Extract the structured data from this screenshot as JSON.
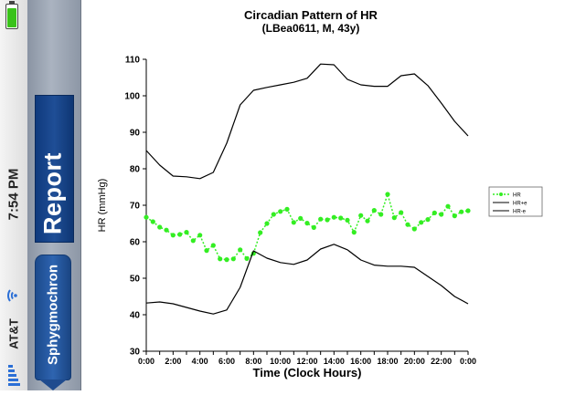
{
  "status_bar": {
    "carrier": "AT&T",
    "time": "7:54 PM",
    "battery_level": 0.9,
    "signal_bars": 5,
    "icons": [
      "battery-icon",
      "wifi-icon",
      "signal-icon"
    ]
  },
  "nav": {
    "title": "Report",
    "back_label": "Sphygmochron"
  },
  "colors": {
    "hr_series": "#33ee22",
    "bands": "#000000",
    "nav_title_bg": "#1f4e96"
  },
  "chart_data": {
    "type": "line",
    "title": "Circadian Pattern of HR",
    "subtitle": "(LBea0611, M, 43y)",
    "xlabel": "Time (Clock Hours)",
    "ylabel": "HR (mmHg)",
    "ylim": [
      30,
      110
    ],
    "xlim": [
      0,
      24
    ],
    "yticks": [
      30,
      40,
      50,
      60,
      70,
      80,
      90,
      100,
      110
    ],
    "xtick_labels": [
      "0:00",
      "2:00",
      "4:00",
      "6:00",
      "8:00",
      "10:00",
      "12:00",
      "14:00",
      "16:00",
      "18:00",
      "20:00",
      "22:00",
      "0:00"
    ],
    "legend_placement": "right",
    "series": [
      {
        "name": "HR",
        "style": "dotted-markers",
        "x": [
          0,
          0.5,
          1,
          1.5,
          2,
          2.5,
          3,
          3.5,
          4,
          4.5,
          5,
          5.5,
          6,
          6.5,
          7,
          7.5,
          8,
          8.5,
          9,
          9.5,
          10,
          10.5,
          11,
          11.5,
          12,
          12.5,
          13,
          13.5,
          14,
          14.5,
          15,
          15.5,
          16,
          16.5,
          17,
          17.5,
          18,
          18.5,
          19,
          19.5,
          20,
          20.5,
          21,
          21.5,
          22,
          22.5,
          23,
          23.5,
          24
        ],
        "values": [
          66.7,
          65.5,
          64.0,
          63.2,
          61.8,
          62.0,
          62.6,
          60.3,
          61.8,
          57.6,
          59.0,
          55.3,
          55.1,
          55.3,
          57.8,
          55.4,
          56.8,
          62.5,
          65.0,
          67.5,
          68.3,
          68.9,
          65.3,
          66.4,
          65.1,
          63.9,
          66.2,
          66.0,
          66.7,
          66.5,
          65.9,
          62.6,
          67.2,
          65.7,
          68.6,
          67.5,
          73.0,
          66.6,
          68.0,
          64.7,
          63.5,
          65.3,
          66.1,
          67.9,
          67.5,
          69.7,
          67.1,
          68.2,
          68.5
        ]
      },
      {
        "name": "HR+e",
        "style": "solid",
        "x": [
          0,
          1,
          2,
          3,
          4,
          5,
          6,
          7,
          8,
          9,
          10,
          11,
          12,
          13,
          14,
          15,
          16,
          17,
          18,
          19,
          20,
          21,
          22,
          23,
          24
        ],
        "values": [
          85.0,
          81.0,
          78.0,
          77.8,
          77.3,
          79.0,
          87.0,
          97.5,
          101.5,
          102.3,
          103.0,
          103.7,
          104.8,
          108.7,
          108.5,
          104.5,
          103.0,
          102.6,
          102.6,
          105.5,
          106.0,
          102.8,
          98.0,
          93.0,
          89.0
        ]
      },
      {
        "name": "HR-e",
        "style": "solid",
        "x": [
          0,
          1,
          2,
          3,
          4,
          5,
          6,
          7,
          8,
          9,
          10,
          11,
          12,
          13,
          14,
          15,
          16,
          17,
          18,
          19,
          20,
          21,
          22,
          23,
          24
        ],
        "values": [
          43.2,
          43.5,
          43.0,
          42.0,
          41.0,
          40.2,
          41.3,
          47.5,
          57.5,
          55.5,
          54.3,
          53.8,
          55.0,
          58.0,
          59.3,
          57.8,
          55.0,
          53.6,
          53.3,
          53.3,
          53.0,
          50.5,
          48.0,
          45.0,
          43.0
        ]
      }
    ]
  }
}
